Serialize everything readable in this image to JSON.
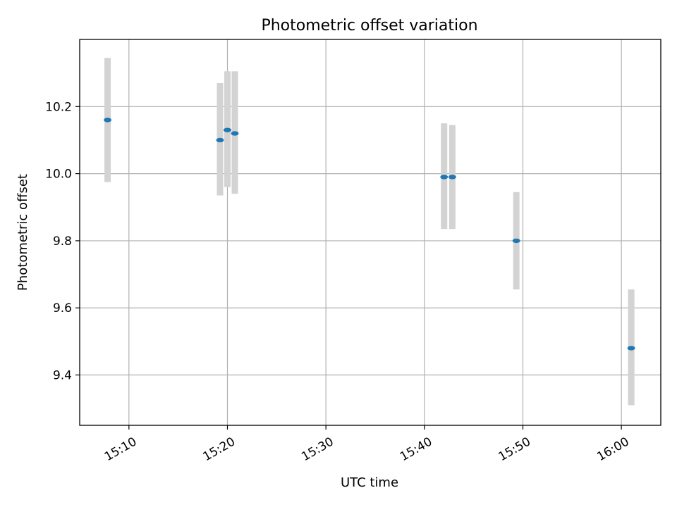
{
  "chart_data": {
    "type": "scatter",
    "title": "Photometric offset variation",
    "xlabel": "UTC time",
    "ylabel": "Photometric offset",
    "x_tick_labels": [
      "15:10",
      "15:20",
      "15:30",
      "15:40",
      "15:50",
      "16:00"
    ],
    "x_tick_values": [
      "15:10",
      "15:20",
      "15:30",
      "15:40",
      "15:50",
      "16:00"
    ],
    "y_tick_labels": [
      "9.4",
      "9.6",
      "9.8",
      "10.0",
      "10.2"
    ],
    "y_tick_values": [
      9.4,
      9.6,
      9.8,
      10.0,
      10.2
    ],
    "xlim": [
      "15:05",
      "16:04"
    ],
    "ylim": [
      9.25,
      10.4
    ],
    "grid": true,
    "colors": {
      "marker": "#1f77b4",
      "errorbar": "#d3d3d3",
      "grid": "#b0b0b0"
    },
    "series": [
      {
        "points": [
          {
            "x": "15:07:50",
            "y": 10.16,
            "y_low": 9.975,
            "y_high": 10.345
          },
          {
            "x": "15:19:15",
            "y": 10.1,
            "y_low": 9.935,
            "y_high": 10.27
          },
          {
            "x": "15:20:00",
            "y": 10.13,
            "y_low": 9.96,
            "y_high": 10.305
          },
          {
            "x": "15:20:45",
            "y": 10.12,
            "y_low": 9.94,
            "y_high": 10.305
          },
          {
            "x": "15:42:00",
            "y": 9.99,
            "y_low": 9.835,
            "y_high": 10.15
          },
          {
            "x": "15:42:50",
            "y": 9.99,
            "y_low": 9.835,
            "y_high": 10.145
          },
          {
            "x": "15:49:20",
            "y": 9.8,
            "y_low": 9.655,
            "y_high": 9.945
          },
          {
            "x": "16:01:00",
            "y": 9.48,
            "y_low": 9.31,
            "y_high": 9.655
          }
        ]
      }
    ]
  }
}
